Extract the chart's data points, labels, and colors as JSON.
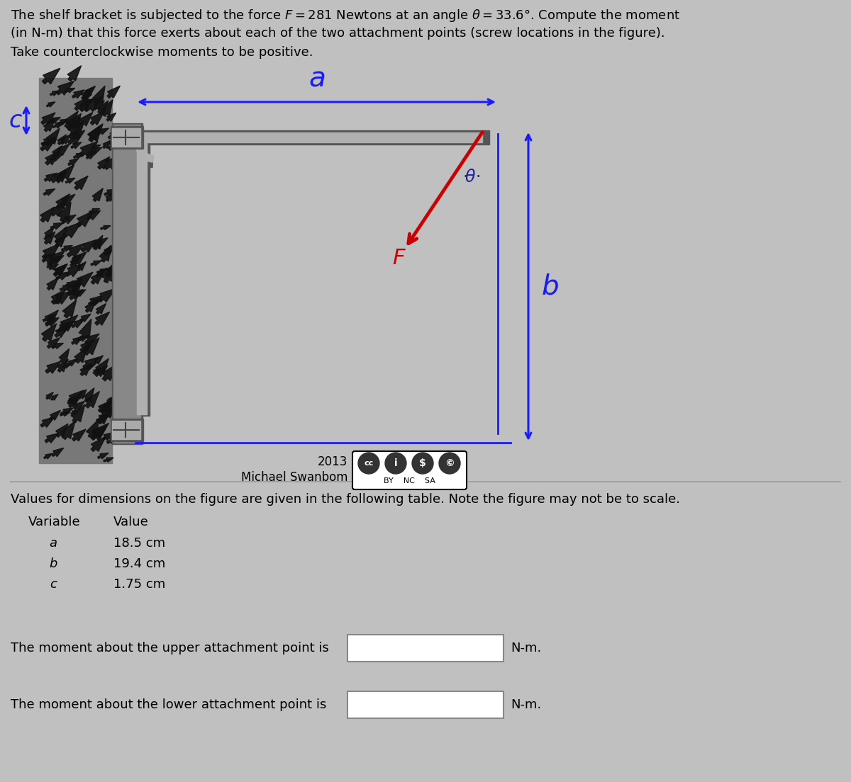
{
  "bg_color": "#c0c0c0",
  "F": 281,
  "theta": 33.6,
  "title_lines": [
    "The shelf bracket is subjected to the force $F = 281$ Newtons at an angle $\\theta = 33.6°$. Compute the moment",
    "(in N-m) that this force exerts about each of the two attachment points (screw locations in the figure).",
    "Take counterclockwise moments to be positive."
  ],
  "dim_note": "Values for dimensions on the figure are given in the following table. Note the figure may not be to scale.",
  "table_rows": [
    [
      "a",
      "18.5 cm"
    ],
    [
      "b",
      "19.4 cm"
    ],
    [
      "c",
      "1.75 cm"
    ]
  ],
  "upper_label": "The moment about the upper attachment point is",
  "lower_label": "The moment about the lower attachment point is",
  "wall_color": "#787878",
  "wall_speckle_color": "#111111",
  "bracket_dark": "#555555",
  "bracket_mid": "#888888",
  "bracket_light": "#b0b0b0",
  "dim_color": "#1a1aff",
  "force_color": "#cc0000",
  "text_color": "#000000",
  "box_edge_color": "#888888"
}
